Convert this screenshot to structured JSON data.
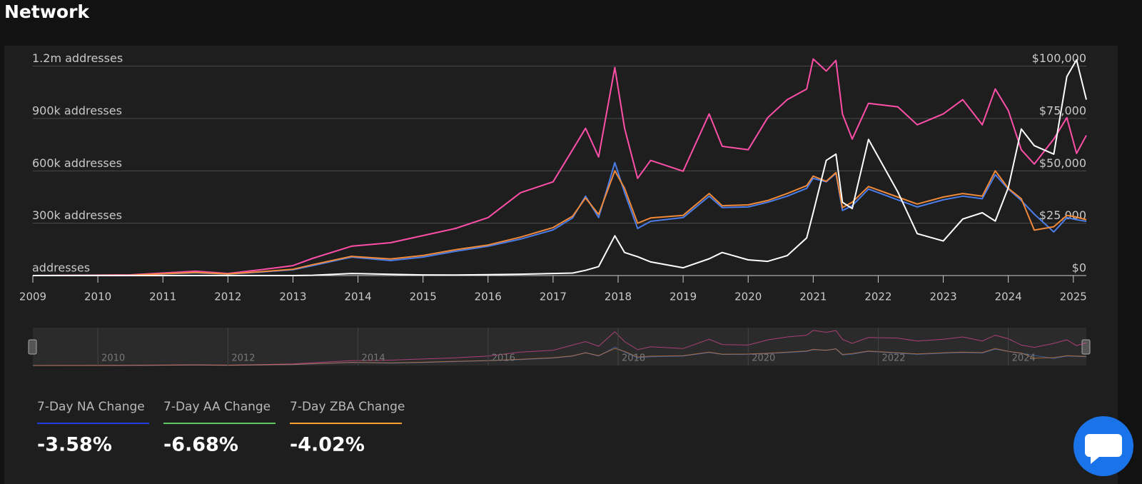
{
  "header": {
    "title": "Network"
  },
  "chart_data": {
    "type": "line",
    "x": [
      2009,
      2010.5,
      2011.5,
      2012,
      2012.5,
      2013,
      2013.3,
      2013.9,
      2014.5,
      2015,
      2015.5,
      2016,
      2016.5,
      2017,
      2017.3,
      2017.5,
      2017.7,
      2017.95,
      2018.1,
      2018.3,
      2018.5,
      2019,
      2019.4,
      2019.6,
      2020,
      2020.3,
      2020.6,
      2020.9,
      2021,
      2021.2,
      2021.35,
      2021.45,
      2021.6,
      2021.85,
      2022.3,
      2022.6,
      2023,
      2023.3,
      2023.6,
      2023.8,
      2024,
      2024.2,
      2024.4,
      2024.7,
      2024.9,
      2025.05,
      2025.2
    ],
    "series": [
      {
        "color": "#ff4fa8",
        "values": [
          0,
          4000,
          25000,
          12000,
          33000,
          57000,
          98000,
          168000,
          188000,
          229000,
          270000,
          332000,
          475000,
          537000,
          721000,
          844000,
          680000,
          1192000,
          844000,
          557000,
          660000,
          598000,
          926000,
          741000,
          721000,
          905000,
          1008000,
          1069000,
          1241000,
          1172000,
          1233000,
          926000,
          782000,
          987000,
          967000,
          864000,
          926000,
          1008000,
          864000,
          1069000,
          946000,
          721000,
          639000,
          782000,
          905000,
          700000,
          803000
        ]
      },
      {
        "color": "#4a7de8",
        "values": [
          0,
          2000,
          16000,
          8000,
          20000,
          33000,
          57000,
          106000,
          86000,
          106000,
          139000,
          168000,
          209000,
          262000,
          330000,
          455000,
          332000,
          647000,
          475000,
          270000,
          311000,
          332000,
          455000,
          390000,
          393000,
          420000,
          455000,
          500000,
          557000,
          537000,
          586000,
          373000,
          400000,
          496000,
          434000,
          393000,
          434000,
          455000,
          440000,
          578000,
          496000,
          430000,
          352000,
          250000,
          332000,
          320000,
          311000
        ]
      },
      {
        "color": "#f0893a",
        "values": [
          0,
          2000,
          18000,
          9000,
          22000,
          36000,
          62000,
          110000,
          95000,
          115000,
          148000,
          175000,
          220000,
          275000,
          340000,
          445000,
          350000,
          600000,
          500000,
          300000,
          330000,
          345000,
          470000,
          400000,
          405000,
          430000,
          470000,
          515000,
          570000,
          540000,
          590000,
          390000,
          420000,
          510000,
          450000,
          410000,
          450000,
          470000,
          455000,
          600000,
          500000,
          440000,
          260000,
          280000,
          345000,
          335000,
          320000
        ]
      },
      {
        "color": "#ffffff",
        "axis": "y2",
        "values": [
          0,
          0,
          15,
          5,
          7,
          13,
          140,
          1000,
          600,
          300,
          250,
          430,
          650,
          1000,
          1200,
          2500,
          4300,
          19000,
          11000,
          9000,
          6500,
          3700,
          8000,
          11000,
          7500,
          6800,
          9500,
          18000,
          30000,
          55000,
          58000,
          35000,
          32000,
          65000,
          40000,
          20000,
          16500,
          27000,
          30000,
          26000,
          42000,
          70000,
          62000,
          58000,
          95000,
          103000,
          84000
        ]
      }
    ],
    "xlim": [
      2009,
      2025.2
    ],
    "xticks": [
      2009,
      2010,
      2011,
      2012,
      2013,
      2014,
      2015,
      2016,
      2017,
      2018,
      2019,
      2020,
      2021,
      2022,
      2023,
      2024,
      2025
    ],
    "ylim": [
      0,
      1260000
    ],
    "yticks": [
      {
        "value": 0,
        "label": "addresses"
      },
      {
        "value": 300000,
        "label": "300k addresses"
      },
      {
        "value": 600000,
        "label": "600k addresses"
      },
      {
        "value": 900000,
        "label": "900k addresses"
      },
      {
        "value": 1200000,
        "label": "1.2m addresses"
      }
    ],
    "y2lim": [
      0,
      105000
    ],
    "y2ticks": [
      {
        "value": 0,
        "label": "$0"
      },
      {
        "value": 25000,
        "label": "$25,000"
      },
      {
        "value": 50000,
        "label": "$50,000"
      },
      {
        "value": 75000,
        "label": "$75,000"
      },
      {
        "value": 100000,
        "label": "$100,000"
      }
    ],
    "grid": true,
    "navigator_xticks": [
      2010,
      2012,
      2014,
      2016,
      2018,
      2020,
      2022,
      2024
    ]
  },
  "stats": [
    {
      "label": "7-Day NA Change",
      "value": "-3.58%",
      "color": "#1f3de0"
    },
    {
      "label": "7-Day AA Change",
      "value": "-6.68%",
      "color": "#5ec95e"
    },
    {
      "label": "7-Day ZBA Change",
      "value": "-4.02%",
      "color": "#f5a030"
    }
  ]
}
